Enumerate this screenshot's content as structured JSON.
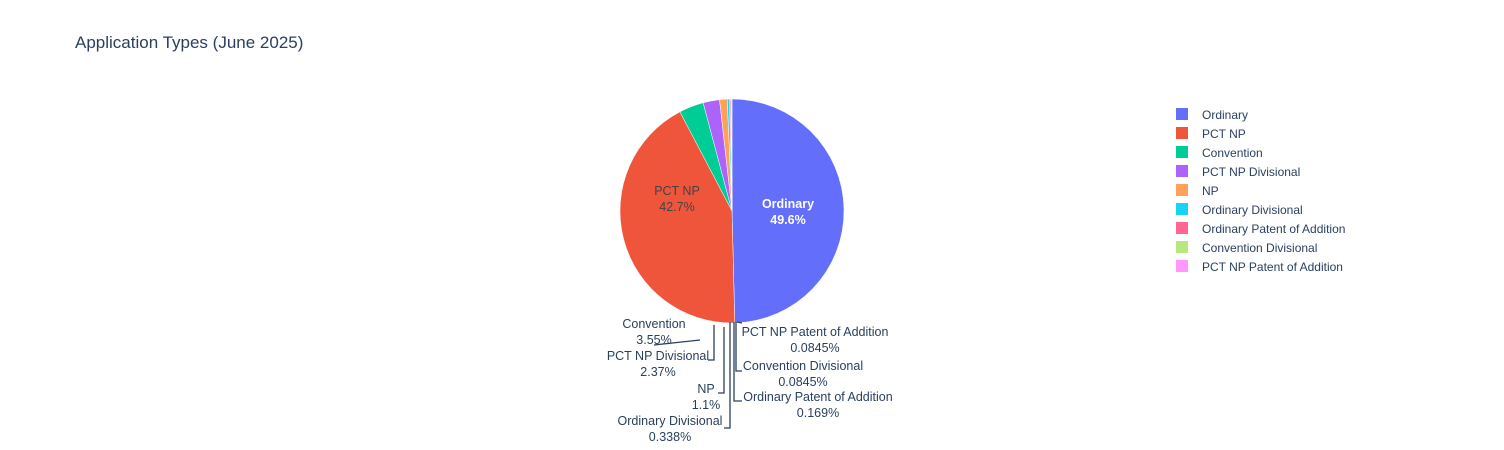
{
  "chart_data": {
    "type": "pie",
    "title": "Application Types (June 2025)",
    "slices": [
      {
        "label": "Ordinary",
        "percent_text": "49.6%",
        "value": 49.6,
        "color": "#636efa"
      },
      {
        "label": "PCT NP",
        "percent_text": "42.7%",
        "value": 42.7,
        "color": "#ef553b"
      },
      {
        "label": "Convention",
        "percent_text": "3.55%",
        "value": 3.55,
        "color": "#00cc96"
      },
      {
        "label": "PCT NP Divisional",
        "percent_text": "2.37%",
        "value": 2.37,
        "color": "#ab63fa"
      },
      {
        "label": "NP",
        "percent_text": "1.1%",
        "value": 1.1,
        "color": "#ffa15a"
      },
      {
        "label": "Ordinary Divisional",
        "percent_text": "0.338%",
        "value": 0.338,
        "color": "#19d3f3"
      },
      {
        "label": "Ordinary Patent of Addition",
        "percent_text": "0.169%",
        "value": 0.169,
        "color": "#ff6692"
      },
      {
        "label": "Convention Divisional",
        "percent_text": "0.0845%",
        "value": 0.0845,
        "color": "#b6e880"
      },
      {
        "label": "PCT NP Patent of Addition",
        "percent_text": "0.0845%",
        "value": 0.0845,
        "color": "#ff97ff"
      }
    ],
    "legend_position": "right"
  }
}
